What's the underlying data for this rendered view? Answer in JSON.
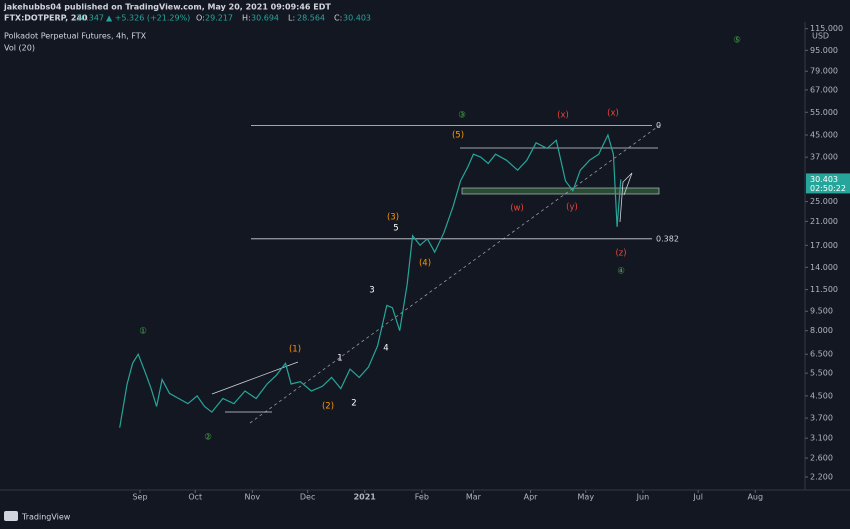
{
  "header": {
    "publisher": "jakehubbs04 published on TradingView.com, May 20, 2021 09:09:46 EDT",
    "symbol": "FTX:DOTPERP, 240",
    "last": "30.347",
    "change": "▲ +5.326 (+21.29%)",
    "ohlc": [
      {
        "label": "O:",
        "value": "29.217"
      },
      {
        "label": "H:",
        "value": "30.694"
      },
      {
        "label": "L:",
        "value": "28.564"
      },
      {
        "label": "C:",
        "value": "30.403"
      }
    ],
    "legend": "Polkadot Perpetual Futures, 4h, FTX",
    "volume_legend": "Vol (20)"
  },
  "chart_data": {
    "type": "line",
    "log_scale": true,
    "color": "#26a69a",
    "currency": "USD",
    "x": [
      20,
      24,
      27,
      30,
      34,
      37,
      40,
      43,
      47,
      52,
      57,
      62,
      66,
      70,
      76,
      82,
      88,
      94,
      100,
      105,
      110,
      113,
      118,
      124,
      130,
      135,
      140,
      145,
      150,
      155,
      160,
      165,
      168,
      172,
      176,
      179,
      183,
      187,
      191,
      196,
      201,
      205,
      209,
      212,
      216,
      220,
      224,
      230,
      236,
      241,
      246,
      252,
      257,
      262,
      266,
      270,
      275,
      280,
      285,
      288,
      290,
      292
    ],
    "values": [
      3.4,
      5.0,
      6.0,
      6.5,
      5.5,
      4.8,
      4.1,
      5.2,
      4.6,
      4.4,
      4.2,
      4.5,
      4.1,
      3.9,
      4.4,
      4.2,
      4.7,
      4.4,
      5.0,
      5.4,
      6.0,
      5.0,
      5.1,
      4.7,
      4.9,
      5.3,
      4.8,
      5.7,
      5.3,
      5.8,
      7.0,
      10.0,
      9.8,
      8.0,
      12.0,
      18.5,
      17.0,
      18.0,
      16.0,
      19.0,
      24.0,
      30.0,
      34.0,
      38.0,
      37.0,
      35.0,
      38.0,
      36.0,
      33.0,
      36.0,
      42.0,
      40.0,
      43.0,
      30.0,
      27.5,
      33.0,
      36.0,
      38.0,
      45.0,
      38.0,
      20.0,
      30.403
    ],
    "xlim": [
      -45,
      392
    ],
    "xticks": [
      {
        "value": 31,
        "label": "Sep"
      },
      {
        "value": 61,
        "label": "Oct"
      },
      {
        "value": 92,
        "label": "Nov"
      },
      {
        "value": 122,
        "label": "Dec"
      },
      {
        "value": 153,
        "label": "2021"
      },
      {
        "value": 184,
        "label": "Feb"
      },
      {
        "value": 212,
        "label": "Mar"
      },
      {
        "value": 243,
        "label": "Apr"
      },
      {
        "value": 273,
        "label": "May"
      },
      {
        "value": 304,
        "label": "Jun"
      },
      {
        "value": 334,
        "label": "Jul"
      },
      {
        "value": 365,
        "label": "Aug"
      }
    ],
    "ylim": [
      2.05,
      122
    ],
    "yticks": [
      {
        "value": 115,
        "label": "115.000"
      },
      {
        "value": 95,
        "label": "95.000"
      },
      {
        "value": 79,
        "label": "79.000"
      },
      {
        "value": 67,
        "label": "67.000"
      },
      {
        "value": 55,
        "label": "55.000"
      },
      {
        "value": 45,
        "label": "45.000"
      },
      {
        "value": 37,
        "label": "37.000"
      },
      {
        "value": 25,
        "label": "25.000"
      },
      {
        "value": 21,
        "label": "21.000"
      },
      {
        "value": 17,
        "label": "17.000"
      },
      {
        "value": 14,
        "label": "14.000"
      },
      {
        "value": 11.5,
        "label": "11.500"
      },
      {
        "value": 9.5,
        "label": "9.500"
      },
      {
        "value": 8,
        "label": "8.000"
      },
      {
        "value": 6.5,
        "label": "6.500"
      },
      {
        "value": 5.5,
        "label": "5.500"
      },
      {
        "value": 4.5,
        "label": "4.500"
      },
      {
        "value": 3.7,
        "label": "3.700"
      },
      {
        "value": 3.1,
        "label": "3.100"
      },
      {
        "value": 2.6,
        "label": "2.600"
      },
      {
        "value": 2.2,
        "label": "2.200"
      }
    ],
    "last_price": {
      "value": 30.403,
      "label": "30.403"
    },
    "countdown": "02:50:22",
    "fib_levels": [
      {
        "value": 48.9,
        "label": "0"
      },
      {
        "value": 18.0,
        "label": "0.382"
      }
    ],
    "annotations": [
      {
        "text": "①",
        "color": "#4caf50"
      },
      {
        "text": "②",
        "color": "#4caf50"
      },
      {
        "text": "(1)",
        "color": "#ff9800"
      },
      {
        "text": "(2)",
        "color": "#ff9800"
      },
      {
        "text": "1",
        "color": "#ffffff"
      },
      {
        "text": "2",
        "color": "#ffffff"
      },
      {
        "text": "3",
        "color": "#ffffff"
      },
      {
        "text": "4",
        "color": "#ffffff"
      },
      {
        "text": "5",
        "color": "#ffffff"
      },
      {
        "text": "(3)",
        "color": "#ff9800"
      },
      {
        "text": "(4)",
        "color": "#ff9800"
      },
      {
        "text": "(5)",
        "color": "#ff9800"
      },
      {
        "text": "③",
        "color": "#4caf50"
      },
      {
        "text": "(w)",
        "color": "#f44336"
      },
      {
        "text": "(x)",
        "color": "#f44336"
      },
      {
        "text": "(y)",
        "color": "#f44336"
      },
      {
        "text": "(x)",
        "color": "#f44336"
      },
      {
        "text": "(z)",
        "color": "#f44336"
      },
      {
        "text": "④",
        "color": "#4caf50"
      },
      {
        "text": "⑤",
        "color": "#4caf50"
      }
    ]
  },
  "footer": {
    "brand": "TradingView"
  }
}
